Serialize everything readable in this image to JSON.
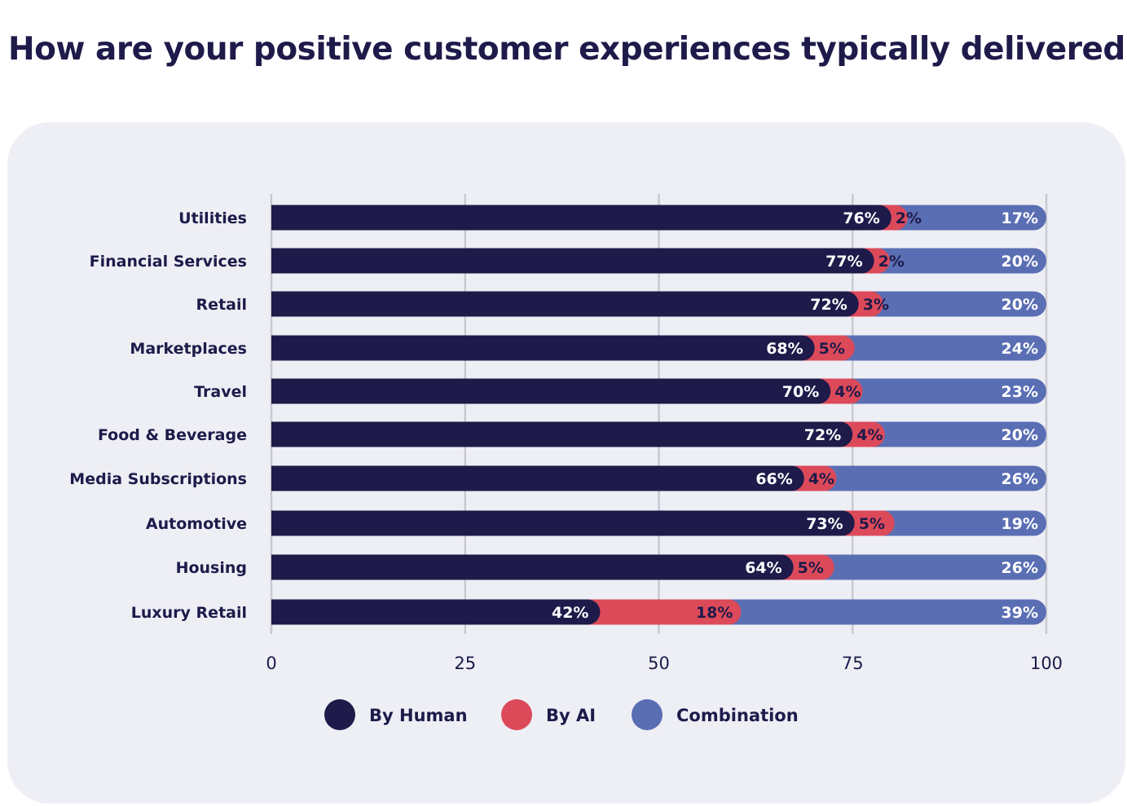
{
  "title": "How are your positive customer experiences typically delivered?",
  "chart_data": {
    "type": "bar",
    "orientation": "horizontal",
    "stacked": true,
    "categories": [
      "Utilities",
      "Financial Services",
      "Retail",
      "Marketplaces",
      "Travel",
      "Food & Beverage",
      "Media Subscriptions",
      "Automotive",
      "Housing",
      "Luxury Retail"
    ],
    "series": [
      {
        "name": "By Human",
        "color": "#1e1a4a",
        "values": [
          76,
          77,
          72,
          68,
          70,
          72,
          66,
          73,
          64,
          42
        ],
        "labels": [
          "76%",
          "77%",
          "72%",
          "68%",
          "70%",
          "72%",
          "66%",
          "73%",
          "64%",
          "42%"
        ]
      },
      {
        "name": "By AI",
        "color": "#dc4a5a",
        "values": [
          2,
          2,
          3,
          5,
          4,
          4,
          4,
          5,
          5,
          18
        ],
        "labels": [
          "2%",
          "2%",
          "3%",
          "5%",
          "4%",
          "4%",
          "4%",
          "5%",
          "5%",
          "18%"
        ]
      },
      {
        "name": "Combination",
        "color": "#5a6eb4",
        "values": [
          17,
          20,
          20,
          24,
          23,
          20,
          26,
          19,
          26,
          39
        ],
        "labels": [
          "17%",
          "20%",
          "20%",
          "24%",
          "23%",
          "20%",
          "26%",
          "19%",
          "26%",
          "39%"
        ]
      }
    ],
    "xlim": [
      0,
      100
    ],
    "xticks": [
      "0",
      "25",
      "50",
      "75",
      "100"
    ],
    "grid": true,
    "legend_position": "bottom"
  }
}
